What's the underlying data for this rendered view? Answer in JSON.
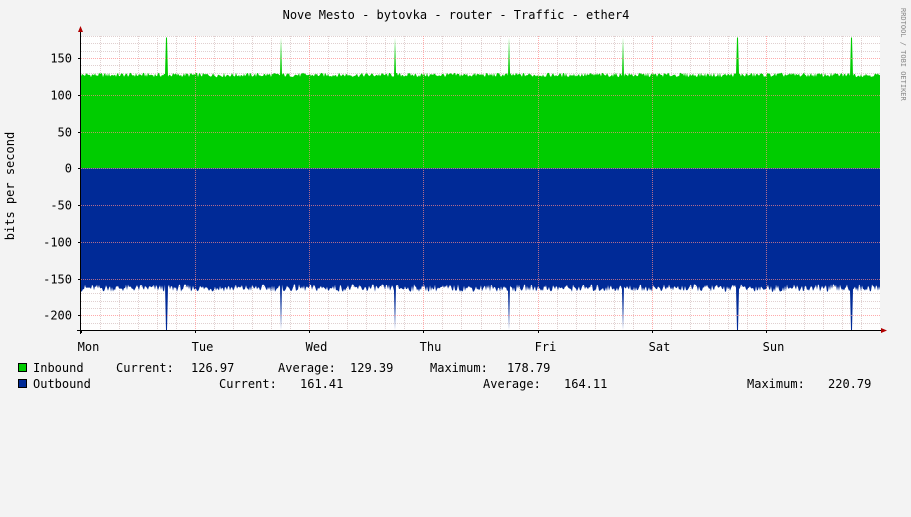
{
  "chart_data": {
    "type": "area",
    "title": "Nove Mesto - bytovka - router - Traffic - ether4",
    "ylabel": "bits per second",
    "side_label": "RRDTOOL / TOBI OETIKER",
    "ylim": [
      -220,
      180
    ],
    "y_ticks": [
      150,
      100,
      50,
      0,
      -50,
      -100,
      -150,
      -200
    ],
    "y_tick_labels": [
      "150",
      "100",
      "50",
      "0",
      "-50",
      "-100",
      "-150",
      "-200"
    ],
    "x_labels": [
      "Mon",
      "Tue",
      "Wed",
      "Thu",
      "Fri",
      "Sat",
      "Sun"
    ],
    "grid": true,
    "series": [
      {
        "name": "Inbound",
        "color": "#00cc00",
        "base_value": 127,
        "spike_value": 178,
        "spike_days": [
          0.75,
          1.75,
          2.75,
          3.75,
          4.75,
          5.75,
          6.75
        ]
      },
      {
        "name": "Outbound",
        "color": "#002a97",
        "base_value": -163,
        "spike_value": -220,
        "spike_days": [
          0.75,
          1.75,
          2.75,
          3.75,
          4.75,
          5.75,
          6.75
        ]
      }
    ]
  },
  "legend": [
    {
      "name": "Inbound",
      "color": "#00cc00",
      "current_label": "Current:",
      "current": "126.97",
      "average_label": "Average:",
      "average": "129.39",
      "maximum_label": "Maximum:",
      "maximum": "178.79"
    },
    {
      "name": "Outbound",
      "color": "#002a97",
      "current_label": "Current:",
      "current": "161.41",
      "average_label": "Average:",
      "average": "164.11",
      "maximum_label": "Maximum:",
      "maximum": "220.79"
    }
  ]
}
